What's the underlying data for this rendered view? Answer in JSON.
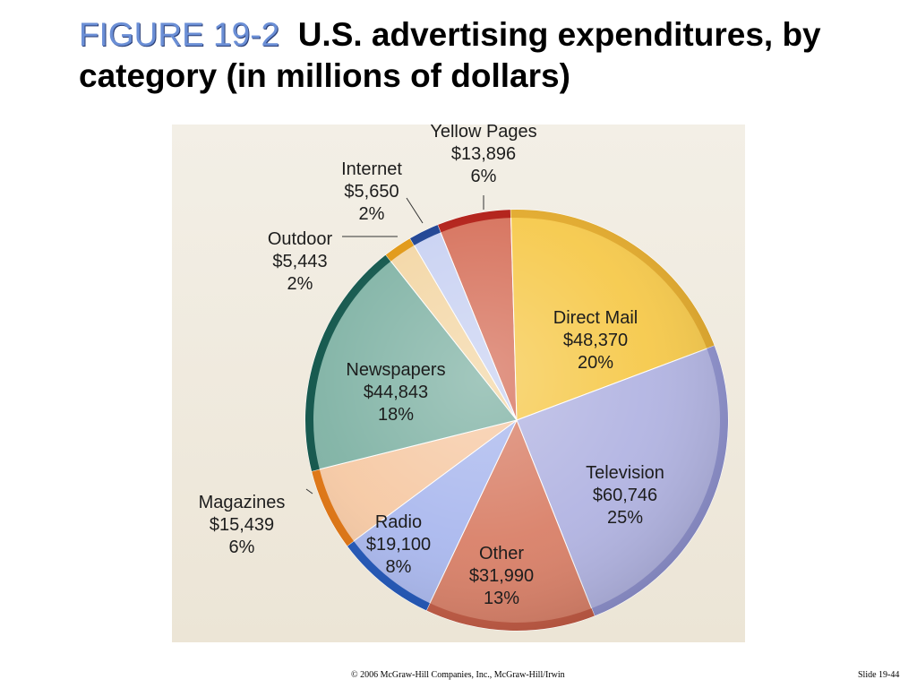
{
  "slide": {
    "figure_label": "FIGURE 19-2",
    "title": "U.S. advertising expenditures, by category (in millions of dollars)",
    "copyright": "© 2006 McGraw-Hill Companies, Inc., McGraw-Hill/Irwin",
    "slide_number": "Slide 19-44"
  },
  "chart_data": {
    "type": "pie",
    "title": "U.S. advertising expenditures, by category (in millions of dollars)",
    "slices": [
      {
        "label": "Yellow Pages",
        "amount_text": "$13,896",
        "value": 13896,
        "percent_text": "6%",
        "color": "#d6705a",
        "rim": "#b01a12"
      },
      {
        "label": "Direct Mail",
        "amount_text": "$48,370",
        "value": 48370,
        "percent_text": "20%",
        "color": "#f6c94b",
        "rim": "#e2a92a"
      },
      {
        "label": "Television",
        "amount_text": "$60,746",
        "value": 60746,
        "percent_text": "25%",
        "color": "#b2b4e2",
        "rim": "#8f92cf"
      },
      {
        "label": "Other",
        "amount_text": "$31,990",
        "value": 31990,
        "percent_text": "13%",
        "color": "#d98068",
        "rim": "#c35a43"
      },
      {
        "label": "Radio",
        "amount_text": "$19,100",
        "value": 19100,
        "percent_text": "8%",
        "color": "#aab8ee",
        "rim": "#1f55b8"
      },
      {
        "label": "Magazines",
        "amount_text": "$15,439",
        "value": 15439,
        "percent_text": "6%",
        "color": "#f6c9a4",
        "rim": "#e0730e"
      },
      {
        "label": "Newspapers",
        "amount_text": "$44,843",
        "value": 44843,
        "percent_text": "18%",
        "color": "#7fb2a4",
        "rim": "#0c5247"
      },
      {
        "label": "Outdoor",
        "amount_text": "$5,443",
        "value": 5443,
        "percent_text": "2%",
        "color": "#f3d6a4",
        "rim": "#e0950e"
      },
      {
        "label": "Internet",
        "amount_text": "$5,650",
        "value": 5650,
        "percent_text": "2%",
        "color": "#c8d1f2",
        "rim": "#173d8f"
      }
    ]
  }
}
